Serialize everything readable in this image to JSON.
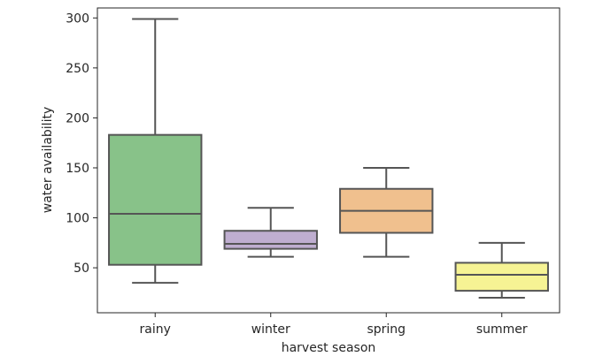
{
  "chart_data": {
    "type": "box",
    "title": "",
    "xlabel": "harvest season",
    "ylabel": "water availability",
    "ylim": [
      5,
      310
    ],
    "yticks": [
      50,
      100,
      150,
      200,
      250,
      300
    ],
    "grid": false,
    "categories": [
      "rainy",
      "winter",
      "spring",
      "summer"
    ],
    "boxes": [
      {
        "category": "rainy",
        "whisker_low": 35,
        "q1": 53,
        "median": 104,
        "q3": 183,
        "whisker_high": 299,
        "color": "#88c289"
      },
      {
        "category": "winter",
        "whisker_low": 61,
        "q1": 69,
        "median": 74,
        "q3": 87,
        "whisker_high": 110,
        "color": "#bfaed0"
      },
      {
        "category": "spring",
        "whisker_low": 61,
        "q1": 85,
        "median": 107,
        "q3": 129,
        "whisker_high": 150,
        "color": "#f0c08e"
      },
      {
        "category": "summer",
        "whisker_low": 20,
        "q1": 27,
        "median": 43,
        "q3": 55,
        "whisker_high": 75,
        "color": "#f6f394"
      }
    ],
    "line_color": "#555555"
  }
}
